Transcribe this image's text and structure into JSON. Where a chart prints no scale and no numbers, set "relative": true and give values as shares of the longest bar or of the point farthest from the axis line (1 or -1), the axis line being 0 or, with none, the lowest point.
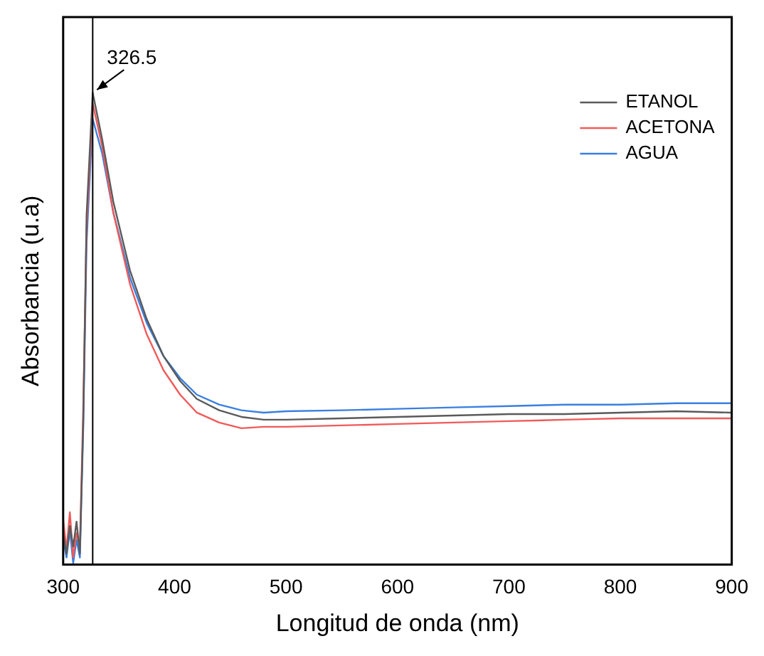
{
  "chart_data": {
    "type": "line",
    "xlabel": "Longitud de onda (nm)",
    "ylabel": "Absorbancia (u.a)",
    "relative": true,
    "x": [
      300,
      303,
      306,
      309,
      312,
      315,
      318,
      321,
      326.5,
      335,
      345,
      360,
      375,
      390,
      405,
      420,
      440,
      460,
      480,
      500,
      550,
      600,
      650,
      700,
      750,
      800,
      850,
      900
    ],
    "series": [
      {
        "name": "ETANOL",
        "color": "#5a5a5a",
        "values": [
          0.067,
          0.023,
          0.082,
          0.038,
          0.091,
          0.023,
          0.301,
          0.74,
          1,
          0.901,
          0.769,
          0.623,
          0.52,
          0.442,
          0.389,
          0.351,
          0.327,
          0.313,
          0.307,
          0.307,
          0.31,
          0.313,
          0.316,
          0.319,
          0.319,
          0.322,
          0.325,
          0.322
        ]
      },
      {
        "name": "ACETONA",
        "color": "#f05a5a",
        "values": [
          0.096,
          0.032,
          0.111,
          0.015,
          0.067,
          0.038,
          0.33,
          0.711,
          0.977,
          0.886,
          0.746,
          0.594,
          0.488,
          0.412,
          0.36,
          0.322,
          0.301,
          0.289,
          0.292,
          0.292,
          0.295,
          0.298,
          0.301,
          0.304,
          0.307,
          0.31,
          0.31,
          0.31
        ]
      },
      {
        "name": "AGUA",
        "color": "#3a7fe0",
        "values": [
          0.053,
          0.015,
          0.073,
          0.003,
          0.053,
          0.015,
          0.287,
          0.681,
          0.944,
          0.871,
          0.746,
          0.608,
          0.512,
          0.442,
          0.395,
          0.36,
          0.339,
          0.327,
          0.322,
          0.325,
          0.327,
          0.33,
          0.333,
          0.336,
          0.339,
          0.339,
          0.342,
          0.342
        ]
      }
    ],
    "xlim": [
      300,
      900
    ],
    "xticks": [
      300,
      400,
      500,
      600,
      700,
      800,
      900
    ],
    "grid": false,
    "legend": "top right",
    "marker": "none",
    "line_style": "solid",
    "ref_lines": [
      {
        "axis": "x",
        "value": 326.5,
        "color": "#000000"
      }
    ],
    "annotations": [
      {
        "text": "326.5",
        "x": 326.5,
        "y": 1
      }
    ]
  }
}
